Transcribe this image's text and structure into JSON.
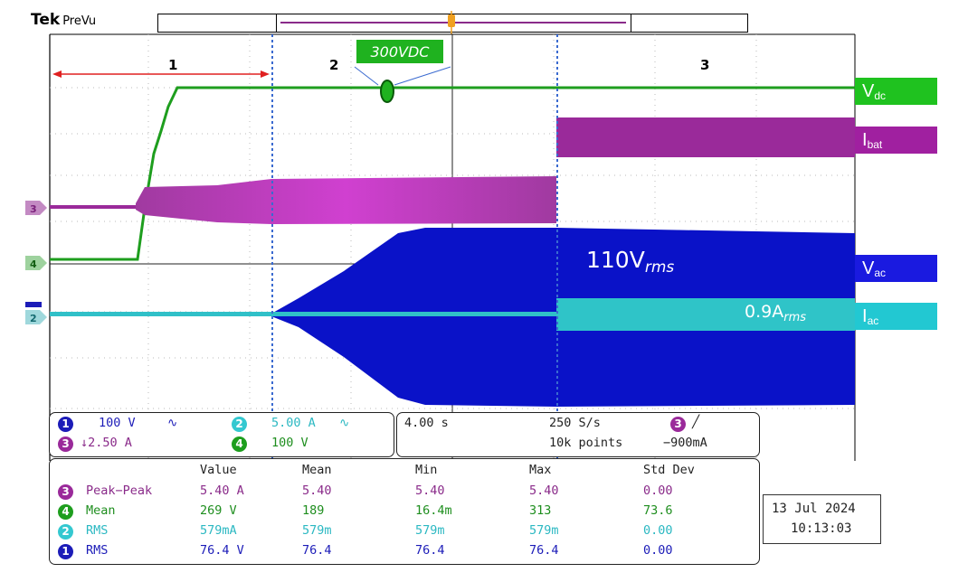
{
  "app": {
    "brand": "Tek",
    "mode": "PreVu"
  },
  "annotations": {
    "regions": [
      "1",
      "2",
      "3"
    ],
    "dc_label": "300VDC",
    "vac_label": {
      "main": "110V",
      "sub": "rms"
    },
    "iac_label": {
      "main": "0.9A",
      "sub": "rms"
    }
  },
  "trace_labels": [
    {
      "main": "V",
      "sub": "dc",
      "color": "#1fc21f"
    },
    {
      "main": "I",
      "sub": "bat",
      "color": "#a020a0"
    },
    {
      "main": "V",
      "sub": "ac",
      "color": "#1a1ae0"
    },
    {
      "main": "I",
      "sub": "ac",
      "color": "#22c8d2"
    }
  ],
  "channel_markers": [
    "3",
    "4",
    "2"
  ],
  "channels": [
    {
      "num": "1",
      "scale": "100 V",
      "coupling": "∿"
    },
    {
      "num": "2",
      "scale": "5.00 A",
      "coupling": "∿"
    },
    {
      "num": "3",
      "scale": "↓2.50 A"
    },
    {
      "num": "4",
      "scale": "100 V"
    }
  ],
  "timebase": {
    "scale": "4.00 s",
    "sample_rate": "250 S/s",
    "record_length": "10k points"
  },
  "trigger": {
    "source": "3",
    "slope": "╱",
    "level": "−900mA"
  },
  "measurements": {
    "headers": [
      "Value",
      "Mean",
      "Min",
      "Max",
      "Std Dev"
    ],
    "rows": [
      {
        "ch": "3",
        "name": "Peak−Peak",
        "value": "5.40 A",
        "mean": "5.40",
        "min": "5.40",
        "max": "5.40",
        "std": "0.00"
      },
      {
        "ch": "4",
        "name": "Mean",
        "value": "269 V",
        "mean": "189",
        "min": "16.4m",
        "max": "313",
        "std": "73.6"
      },
      {
        "ch": "2",
        "name": "RMS",
        "value": "579mA",
        "mean": "579m",
        "min": "579m",
        "max": "579m",
        "std": "0.00"
      },
      {
        "ch": "1",
        "name": "RMS",
        "value": "76.4 V",
        "mean": "76.4",
        "min": "76.4",
        "max": "76.4",
        "std": "0.00"
      }
    ]
  },
  "datetime": {
    "date": "13 Jul  2024",
    "time": "10:13:03"
  }
}
